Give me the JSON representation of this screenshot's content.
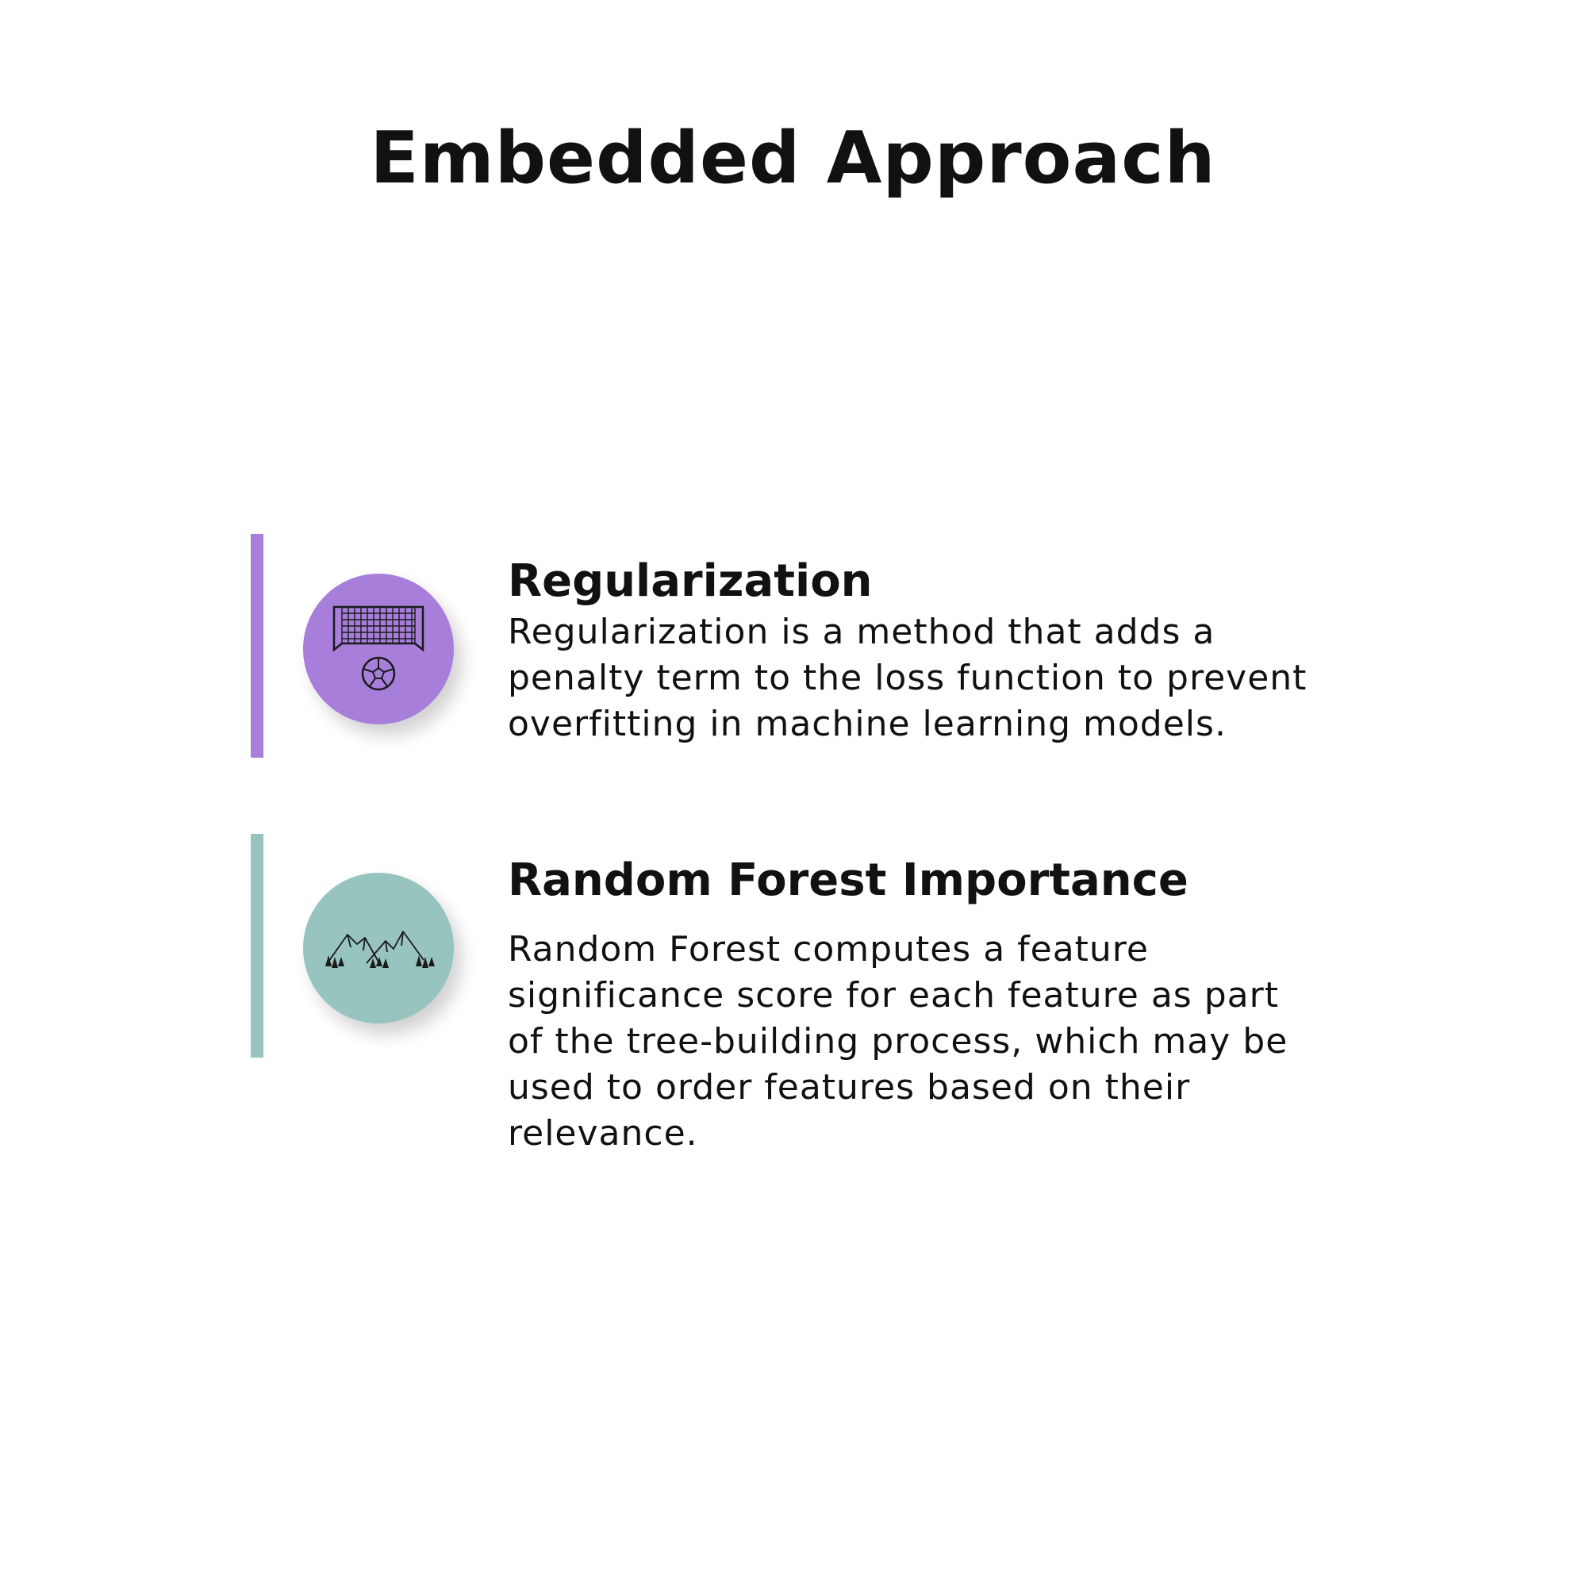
{
  "title": "Embedded Approach",
  "items": [
    {
      "heading": "Regularization",
      "body": "Regularization is a method that adds a penalty term to the loss function to prevent overfitting in machine learning models.",
      "icon": "soccer-goal-icon",
      "accent_color": "#a77fdb"
    },
    {
      "heading": "Random Forest Importance",
      "body": "Random Forest computes a feature significance score for each feature as part of the tree-building process, which may be used to order features based on their relevance.",
      "icon": "mountains-forest-icon",
      "accent_color": "#98c4bf"
    }
  ]
}
